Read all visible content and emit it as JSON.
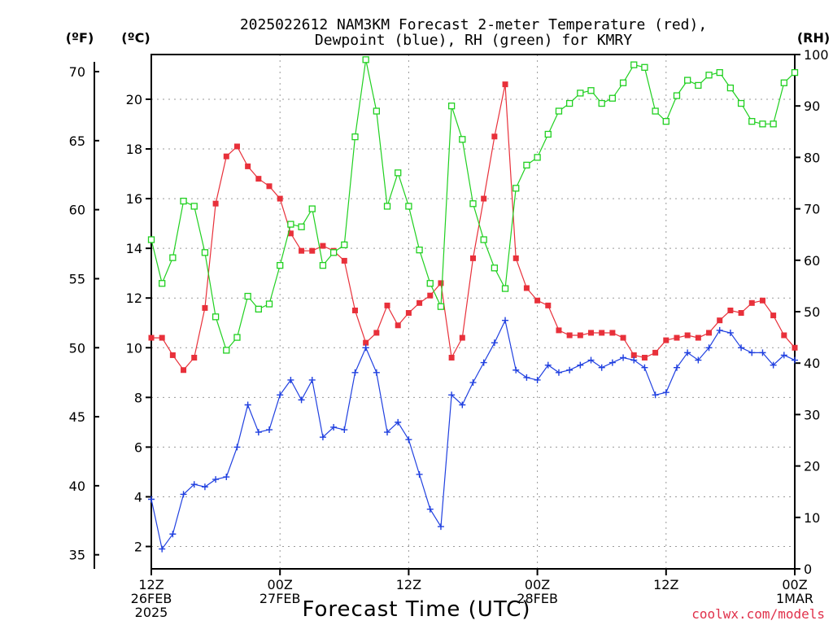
{
  "chart_data": {
    "type": "line",
    "title_lines": [
      "2025022612 NAM3KM Forecast 2-meter Temperature (red),",
      "Dewpoint (blue), RH (green) for KMRY"
    ],
    "xlabel": "Forecast Time (UTC)",
    "credit": "coolwx.com/models",
    "unit_labels": {
      "f": "(ºF)",
      "c": "(ºC)",
      "rh": "(RH)"
    },
    "x_ticks": [
      {
        "hour": 0,
        "lines": [
          "12Z",
          "26FEB",
          "2025"
        ]
      },
      {
        "hour": 12,
        "lines": [
          "00Z",
          "27FEB"
        ]
      },
      {
        "hour": 24,
        "lines": [
          "12Z"
        ]
      },
      {
        "hour": 36,
        "lines": [
          "00Z",
          "28FEB"
        ]
      },
      {
        "hour": 48,
        "lines": [
          "12Z"
        ]
      },
      {
        "hour": 60,
        "lines": [
          "00Z",
          "1MAR"
        ]
      }
    ],
    "x_range_hours": [
      0,
      60
    ],
    "c_ticks": [
      2,
      4,
      6,
      8,
      10,
      12,
      14,
      16,
      18,
      20
    ],
    "c_range": [
      1.1,
      21.8
    ],
    "f_ticks": [
      35,
      40,
      45,
      50,
      55,
      60,
      65,
      70
    ],
    "rh_ticks": [
      0,
      10,
      20,
      30,
      40,
      50,
      60,
      70,
      80,
      90,
      100
    ],
    "rh_range": [
      0,
      100
    ],
    "grid": true,
    "series": [
      {
        "name": "Temperature",
        "axis": "c",
        "color": "#e8303a",
        "marker": "filled-square",
        "values": [
          10.4,
          10.4,
          9.7,
          9.1,
          9.6,
          11.6,
          15.8,
          17.7,
          18.1,
          17.3,
          16.8,
          16.5,
          16.0,
          14.6,
          13.9,
          13.9,
          14.1,
          13.9,
          13.5,
          11.5,
          10.2,
          10.6,
          11.7,
          10.9,
          11.4,
          11.8,
          12.1,
          12.6,
          9.6,
          10.4,
          13.6,
          16.0,
          18.5,
          20.6,
          13.6,
          12.4,
          11.9,
          11.7,
          10.7,
          10.5,
          10.5,
          10.6,
          10.6,
          10.6,
          10.4,
          9.7,
          9.6,
          9.8,
          10.3,
          10.4,
          10.5,
          10.4,
          10.6,
          11.1,
          11.5,
          11.4,
          11.8,
          11.9,
          11.3,
          10.5,
          10.0
        ]
      },
      {
        "name": "Dewpoint",
        "axis": "c",
        "color": "#2040e0",
        "marker": "plus",
        "values": [
          3.9,
          1.9,
          2.5,
          4.1,
          4.5,
          4.4,
          4.7,
          4.8,
          6.0,
          7.7,
          6.6,
          6.7,
          8.1,
          8.7,
          7.9,
          8.7,
          6.4,
          6.8,
          6.7,
          9.0,
          10.0,
          9.0,
          6.6,
          7.0,
          6.3,
          4.9,
          3.5,
          2.8,
          8.1,
          7.7,
          8.6,
          9.4,
          10.2,
          11.1,
          9.1,
          8.8,
          8.7,
          9.3,
          9.0,
          9.1,
          9.3,
          9.5,
          9.2,
          9.4,
          9.6,
          9.5,
          9.2,
          8.1,
          8.2,
          9.2,
          9.8,
          9.5,
          10.0,
          10.7,
          10.6,
          10.0,
          9.8,
          9.8,
          9.3,
          9.7,
          9.5
        ]
      },
      {
        "name": "RH",
        "axis": "rh",
        "color": "#20d020",
        "marker": "open-square",
        "values": [
          64,
          55.5,
          60.5,
          71.5,
          70.5,
          61.5,
          49,
          42.5,
          45,
          53,
          50.5,
          51.5,
          59,
          67,
          66.5,
          70,
          59,
          61.5,
          63,
          84,
          99,
          89,
          70.5,
          77,
          70.5,
          62,
          55.5,
          51,
          90,
          83.5,
          71,
          64,
          58.5,
          54.5,
          74,
          78.5,
          80,
          84.5,
          89,
          90.5,
          92.5,
          93,
          90.5,
          91.5,
          94.5,
          98,
          97.5,
          89,
          87,
          92,
          95,
          94,
          96,
          96.5,
          93.5,
          90.5,
          87,
          86.5,
          86.5,
          94.5,
          96.5
        ]
      }
    ]
  }
}
